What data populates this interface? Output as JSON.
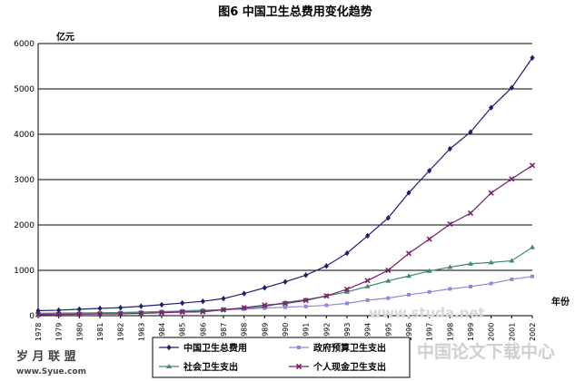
{
  "chart_data": {
    "type": "line",
    "title": "图6  中国卫生总费用变化趋势",
    "ylabel": "亿元",
    "xlabel": "年份",
    "ylim": [
      0,
      6000
    ],
    "yticks": [
      0,
      1000,
      2000,
      3000,
      4000,
      5000,
      6000
    ],
    "grid": true,
    "legend_position": "bottom",
    "categories": [
      "1978",
      "1979",
      "1980",
      "1981",
      "1982",
      "1983",
      "1984",
      "1985",
      "1986",
      "1987",
      "1988",
      "1989",
      "1990",
      "1991",
      "1992",
      "1993",
      "1994",
      "1995",
      "1996",
      "1997",
      "1998",
      "1999",
      "2000",
      "2001",
      "2002"
    ],
    "series": [
      {
        "name": "中国卫生总费用",
        "color": "#1f1f6e",
        "marker": "diamond",
        "values": [
          110,
          121,
          143,
          160,
          177,
          208,
          242,
          279,
          316,
          377,
          488,
          615,
          747,
          893,
          1096,
          1378,
          1761,
          2155,
          2709,
          3197,
          3679,
          4048,
          4587,
          5026,
          5685
        ]
      },
      {
        "name": "政府预算卫生支出",
        "color": "#8c8cd6",
        "marker": "square",
        "values": [
          35,
          41,
          51,
          59,
          68,
          78,
          89,
          108,
          122,
          127,
          145,
          167,
          187,
          204,
          229,
          272,
          342,
          387,
          461,
          524,
          590,
          641,
          710,
          801,
          865
        ]
      },
      {
        "name": "社会卫生支出",
        "color": "#3d8c63",
        "marker": "triangle",
        "values": [
          52,
          57,
          61,
          62,
          70,
          77,
          89,
          91,
          110,
          139,
          165,
          199,
          293,
          352,
          432,
          524,
          645,
          768,
          875,
          984,
          1071,
          1145,
          1172,
          1211,
          1507
        ]
      },
      {
        "name": "个人现金卫生支出",
        "color": "#7a1f6e",
        "marker": "x",
        "values": [
          23,
          26,
          31,
          39,
          40,
          51,
          65,
          80,
          85,
          129,
          176,
          233,
          268,
          337,
          436,
          582,
          774,
          1000,
          1373,
          1689,
          2018,
          2261,
          2705,
          3014,
          3313
        ]
      }
    ]
  },
  "watermarks": {
    "left_top": "岁 月 联 盟",
    "left_bottom": "www.Syue.com",
    "right": "中国论文下载中心",
    "center": "www.studa.net"
  }
}
